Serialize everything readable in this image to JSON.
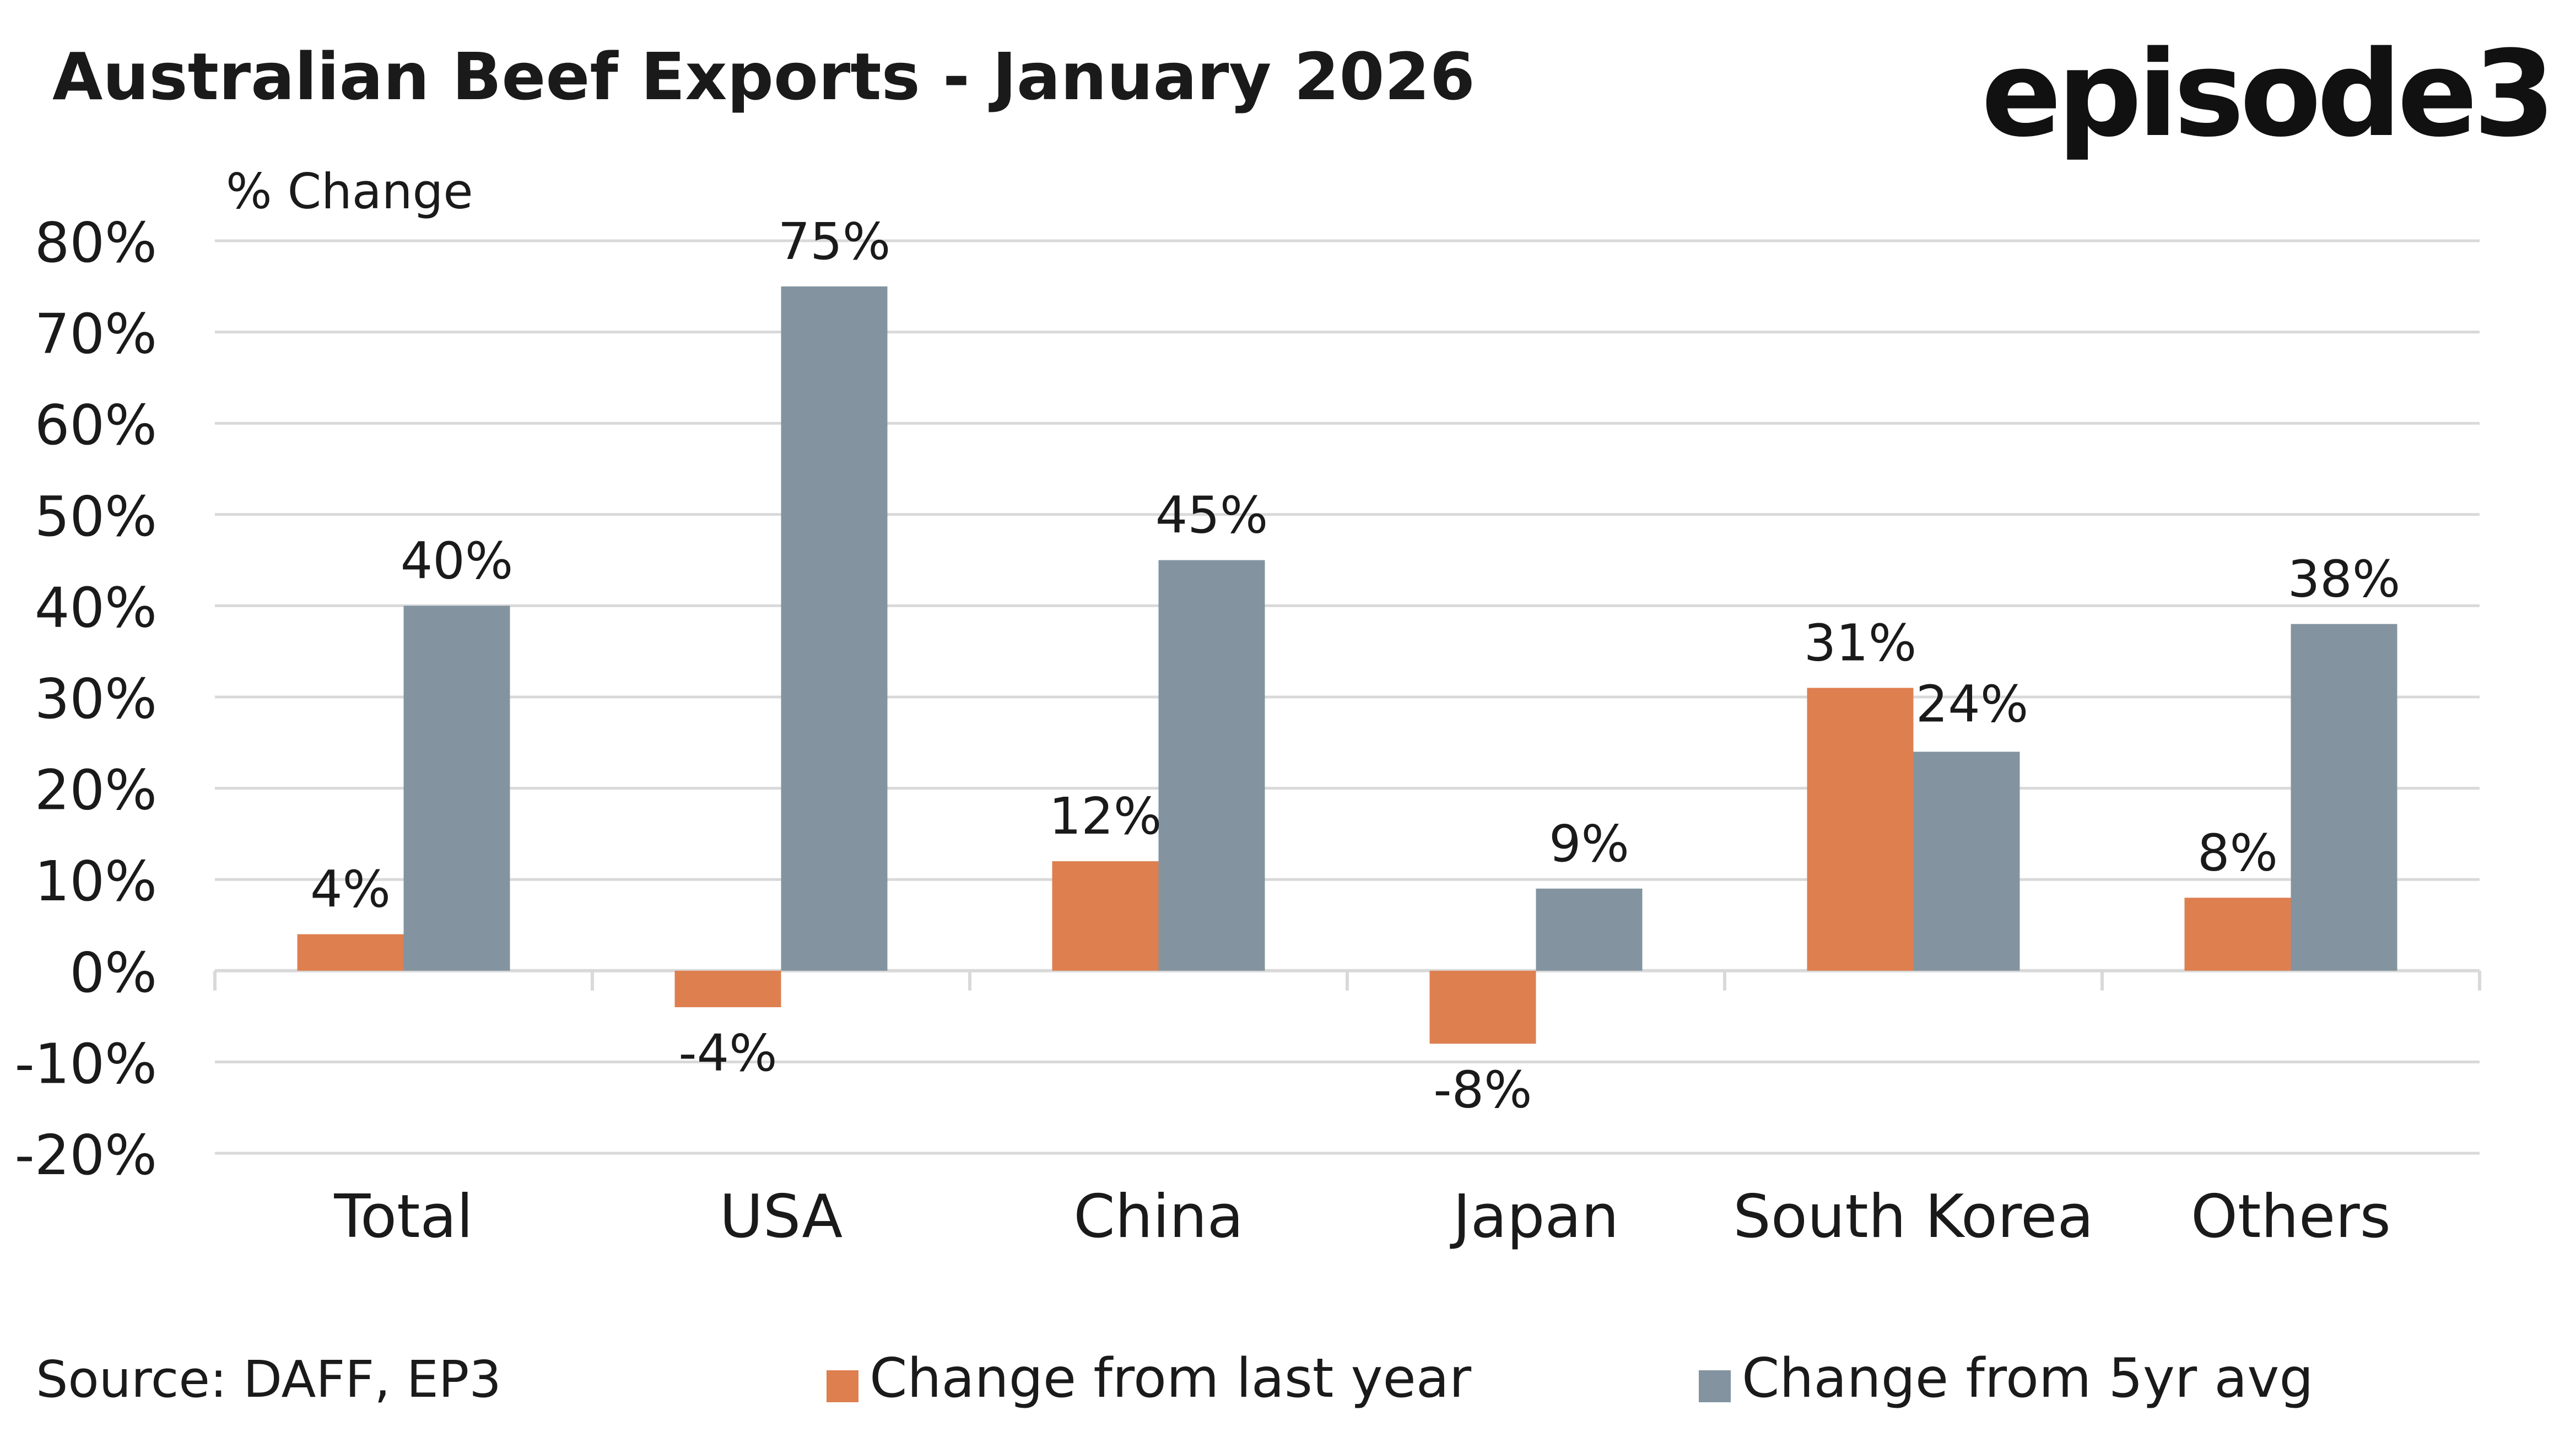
{
  "header": {
    "title": "Australian Beef Exports - January 2026",
    "logo_text": "episode3"
  },
  "footer": {
    "source": "Source: DAFF, EP3"
  },
  "colors": {
    "series_last_year": "#DE7F50",
    "series_5yr_avg": "#8394A0",
    "grid": "#D9D9D9",
    "text": "#1A1A1A"
  },
  "chart_data": {
    "type": "bar",
    "ylabel": "% Change",
    "ylim": [
      -20,
      80
    ],
    "y_ticks": [
      80,
      70,
      60,
      50,
      40,
      30,
      20,
      10,
      0,
      -10,
      -20
    ],
    "y_tick_labels": [
      "80%",
      "70%",
      "60%",
      "50%",
      "40%",
      "30%",
      "20%",
      "10%",
      "0%",
      "-10%",
      "-20%"
    ],
    "categories": [
      "Total",
      "USA",
      "China",
      "Japan",
      "South Korea",
      "Others"
    ],
    "series": [
      {
        "name": "Change from last year",
        "values": [
          4,
          -4,
          12,
          -8,
          31,
          8
        ],
        "labels": [
          "4%",
          "-4%",
          "12%",
          "-8%",
          "31%",
          "8%"
        ]
      },
      {
        "name": "Change from 5yr avg",
        "values": [
          40,
          75,
          45,
          9,
          24,
          38
        ],
        "labels": [
          "40%",
          "75%",
          "45%",
          "9%",
          "24%",
          "38%"
        ]
      }
    ],
    "grid": true,
    "legend": "bottom"
  }
}
